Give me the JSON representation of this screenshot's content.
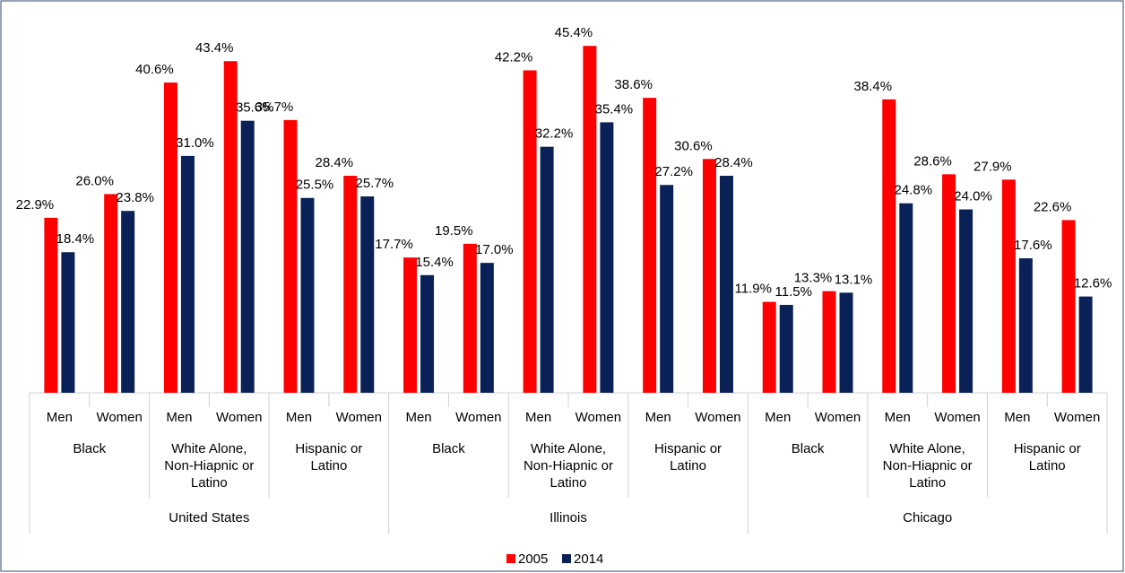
{
  "chart_data": {
    "type": "bar",
    "categories": [
      "Men",
      "Women",
      "Men",
      "Women",
      "Men",
      "Women",
      "Men",
      "Women",
      "Men",
      "Women",
      "Men",
      "Women",
      "Men",
      "Women",
      "Men",
      "Women",
      "Men",
      "Women"
    ],
    "group_labels": [
      "Black",
      "White Alone, Non-Hiapnic or Latino",
      "Hispanic or Latino",
      "Black",
      "White Alone, Non-Hiapnic or Latino",
      "Hispanic or Latino",
      "Black",
      "White Alone, Non-Hiapnic or Latino",
      "Hispanic or Latino"
    ],
    "region_labels": [
      "United States",
      "Illinois",
      "Chicago"
    ],
    "series": [
      {
        "name": "2005",
        "color": "#ff0000",
        "values": [
          22.9,
          26.0,
          40.6,
          43.4,
          35.7,
          28.4,
          17.7,
          19.5,
          42.2,
          45.4,
          38.6,
          30.6,
          11.9,
          13.3,
          38.4,
          28.6,
          27.9,
          22.6
        ],
        "value_labels": [
          "22.9%",
          "26.0%",
          "40.6%",
          "43.4%",
          "35.7%",
          "28.4%",
          "17.7%",
          "19.5%",
          "42.2%",
          "45.4%",
          "38.6%",
          "30.6%",
          "11.9%",
          "13.3%",
          "38.4%",
          "28.6%",
          "27.9%",
          "22.6%"
        ]
      },
      {
        "name": "2014",
        "color": "#0a2158",
        "values": [
          18.4,
          23.8,
          31.0,
          35.6,
          25.5,
          25.7,
          15.4,
          17.0,
          32.2,
          35.4,
          27.2,
          28.4,
          11.5,
          13.1,
          24.8,
          24.0,
          17.6,
          12.6
        ],
        "value_labels": [
          "18.4%",
          "23.8%",
          "31.0%",
          "35.6%",
          "25.5%",
          "25.7%",
          "15.4%",
          "17.0%",
          "32.2%",
          "35.4%",
          "27.2%",
          "28.4%",
          "11.5%",
          "13.1%",
          "24.8%",
          "24.0%",
          "17.6%",
          "12.6%"
        ]
      }
    ],
    "ylim": [
      0,
      50
    ],
    "legend": "bottom"
  }
}
